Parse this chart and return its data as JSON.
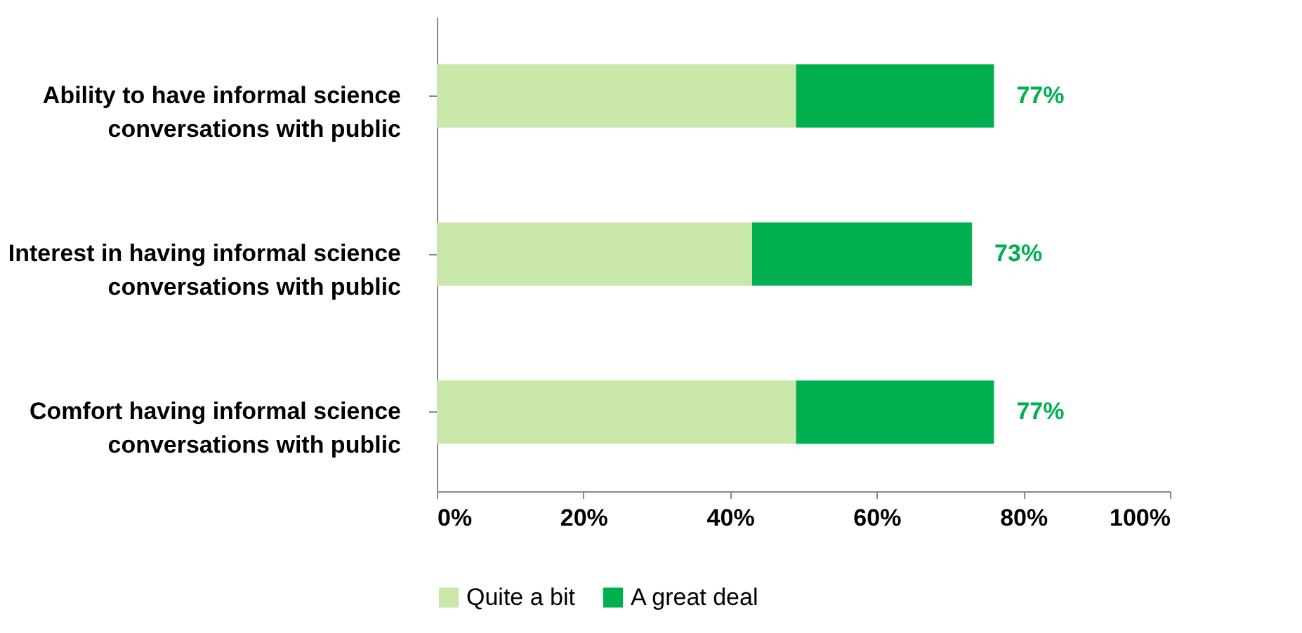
{
  "chart_data": {
    "type": "bar",
    "orientation": "horizontal",
    "stacked": true,
    "categories": [
      "Ability to have informal science\nconversations with public",
      "Interest in having informal science\nconversations with public",
      "Comfort having informal science\nconversations with public"
    ],
    "series": [
      {
        "name": "Quite a bit",
        "color": "#c9e7a9",
        "values": [
          49,
          43,
          49
        ]
      },
      {
        "name": "A great deal",
        "color": "#00b050",
        "values": [
          27,
          30,
          27
        ]
      }
    ],
    "totals": [
      "77%",
      "73%",
      "77%"
    ],
    "xlim": [
      0,
      100
    ],
    "xticks": [
      {
        "value": 0,
        "label": "0%"
      },
      {
        "value": 20,
        "label": "20%"
      },
      {
        "value": 40,
        "label": "40%"
      },
      {
        "value": 60,
        "label": "60%"
      },
      {
        "value": 80,
        "label": "80%"
      },
      {
        "value": 100,
        "label": "100%"
      }
    ],
    "grid": false,
    "legend": "bottom"
  }
}
